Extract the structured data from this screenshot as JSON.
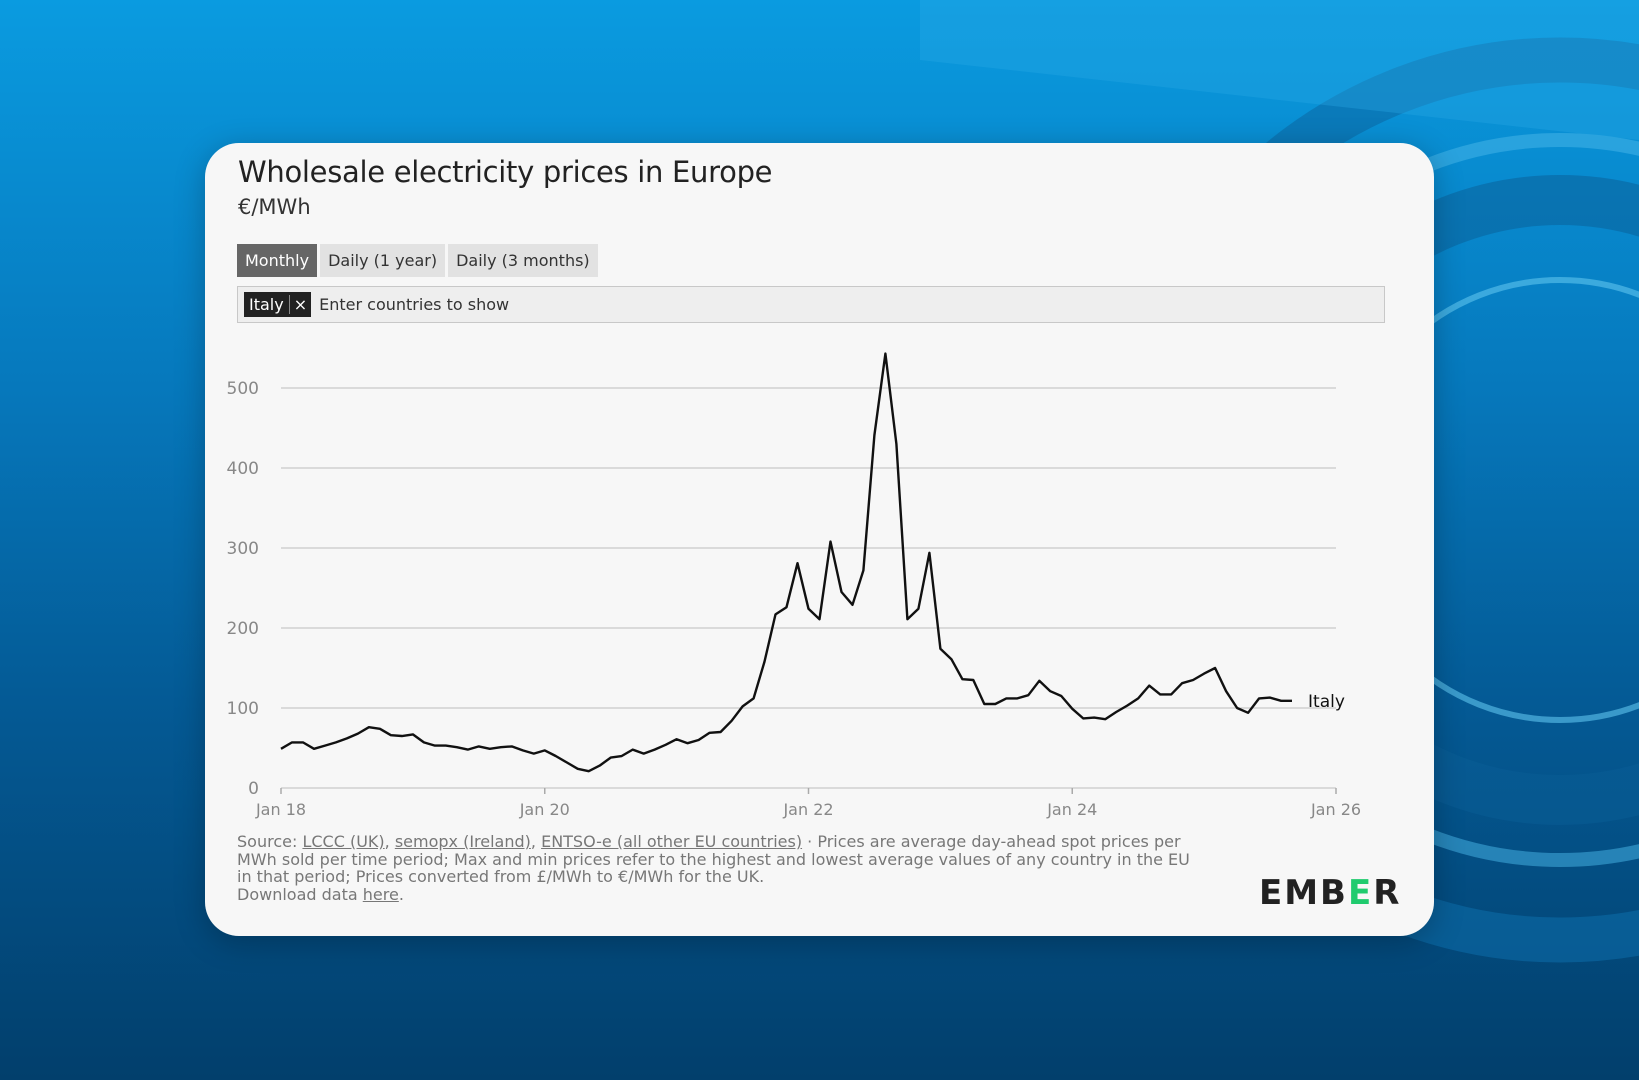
{
  "header": {
    "title": "Wholesale electricity prices in Europe",
    "unit": "€/MWh"
  },
  "tabs": [
    {
      "label": "Monthly",
      "active": true
    },
    {
      "label": "Daily (1 year)",
      "active": false
    },
    {
      "label": "Daily (3 months)",
      "active": false
    }
  ],
  "country_filter": {
    "selected": "Italy",
    "remove": "×",
    "placeholder": "Enter countries to show"
  },
  "footer": {
    "source_prefix": "Source: ",
    "links": [
      "LCCC (UK)",
      "semopx (Ireland)",
      "ENTSO-e (all other EU countries)"
    ],
    "note": " · Prices are average day-ahead spot prices per MWh sold per time period; Max and min prices refer to the highest and lowest average values of any country in the EU in that period; Prices converted from £/MWh to €/MWh for the UK.",
    "download_prefix": "Download data ",
    "download_link": "here",
    "download_suffix": "."
  },
  "logo": {
    "text_a": "EMB",
    "text_e": "E",
    "text_b": "R"
  },
  "chart_data": {
    "type": "line",
    "title": "Wholesale electricity prices in Europe",
    "ylabel": "€/MWh",
    "ylim": [
      0,
      543
    ],
    "yticks": [
      0,
      100,
      200,
      300,
      400,
      500
    ],
    "xticks": [
      "Jan 18",
      "Jan 20",
      "Jan 22",
      "Jan 24",
      "Jan 26"
    ],
    "x_start": "2018-01",
    "x_range_months": 96,
    "grid": true,
    "series": [
      {
        "name": "Italy",
        "color": "#111111",
        "values": [
          49,
          57,
          57,
          49,
          53,
          57,
          62,
          68,
          76,
          74,
          66,
          65,
          67,
          57,
          53,
          53,
          51,
          48,
          52,
          49,
          51,
          52,
          47,
          43,
          47,
          40,
          32,
          24,
          21,
          28,
          38,
          40,
          48,
          43,
          48,
          54,
          61,
          56,
          60,
          69,
          70,
          84,
          102,
          112,
          158,
          217,
          226,
          281,
          224,
          211,
          308,
          245,
          229,
          272,
          441,
          543,
          430,
          211,
          224,
          294,
          174,
          161,
          136,
          135,
          105,
          105,
          112,
          112,
          116,
          134,
          121,
          115,
          99,
          87,
          88,
          86,
          95,
          103,
          112,
          128,
          117,
          117,
          131,
          135,
          143,
          150,
          121,
          100,
          94,
          112,
          113,
          109,
          109
        ]
      }
    ]
  }
}
